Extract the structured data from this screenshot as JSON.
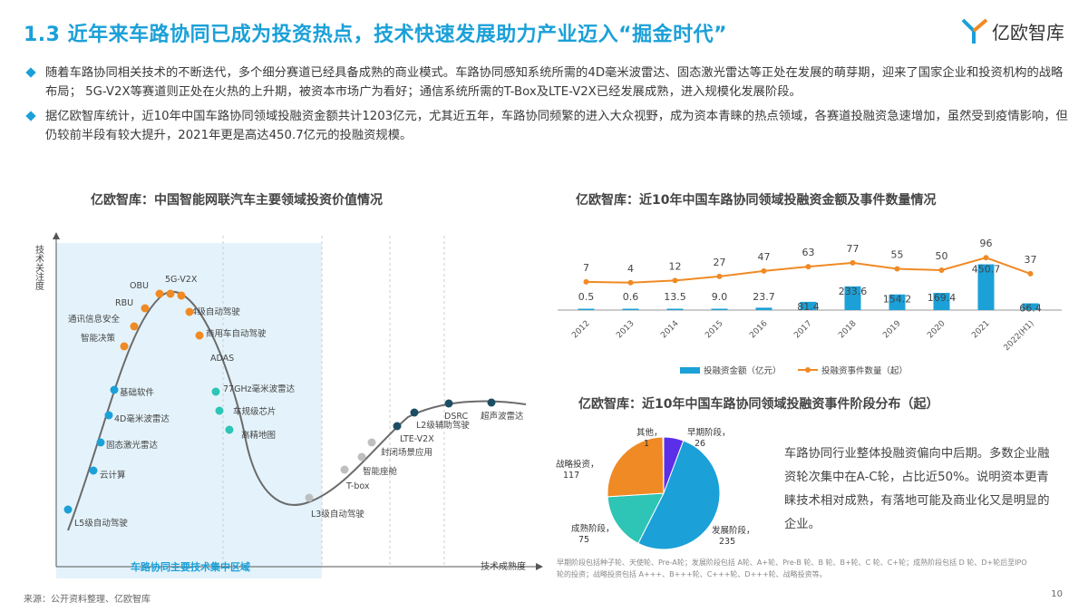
{
  "title": "1.3 近年来车路协同已成为投资热点，技术快速发展助力产业迈入“掘金时代”",
  "logo": {
    "text": "亿欧智库",
    "icon": "yiou-y-logo-icon"
  },
  "bullets": [
    "随着车路协同相关技术的不断迭代，多个细分赛道已经具备成熟的商业模式。车路协同感知系统所需的4D毫米波雷达、固态激光雷达等正处在发展的萌芽期，迎来了国家企业和投资机构的战略布局； 5G-V2X等赛道则正处在火热的上升期，被资本市场广为看好；通信系统所需的T-Box及LTE-V2X已经发展成熟，进入规模化发展阶段。",
    "据亿欧智库统计，近10年中国车路协同领域投融资金额共计1203亿元，尤其近五年，车路协同频繁的进入大众视野，成为资本青睐的热点领域，各赛道投融资急速增加，虽然受到疫情影响，但仍较前半段有较大提升，2021年更是高达450.7亿元的投融资规模。"
  ],
  "hype_chart": {
    "title": "亿欧智库：中国智能网联汽车主要领域投资价值情况",
    "y_axis_label": "技术关注度",
    "x_axis_label": "技术成熟度",
    "region_label": "车路协同主要技术集中区域",
    "points": [
      {
        "label": "L5级自动驾驶",
        "color": "#1ba0d8"
      },
      {
        "label": "云计算",
        "color": "#1ba0d8"
      },
      {
        "label": "固态激光雷达",
        "color": "#1ba0d8"
      },
      {
        "label": "4D毫米波雷达",
        "color": "#1ba0d8"
      },
      {
        "label": "基础软件",
        "color": "#1ba0d8"
      },
      {
        "label": "智能决策",
        "color": "#f08a24"
      },
      {
        "label": "通讯信息安全",
        "color": "#f08a24"
      },
      {
        "label": "RBU",
        "color": "#f08a24"
      },
      {
        "label": "OBU",
        "color": "#f08a24"
      },
      {
        "label": "5G-V2X",
        "color": "#f08a24"
      },
      {
        "label": "L4级自动驾驶",
        "color": "#f08a24"
      },
      {
        "label": "商用车自动驾驶",
        "color": "#f08a24"
      },
      {
        "label": "ADAS",
        "color": "#f08a24"
      },
      {
        "label": "77GHz毫米波雷达",
        "color": "#2ec4b6"
      },
      {
        "label": "车规级芯片",
        "color": "#2ec4b6"
      },
      {
        "label": "高精地图",
        "color": "#2ec4b6"
      },
      {
        "label": "L3级自动驾驶",
        "color": "#bfbfbf"
      },
      {
        "label": "T-box",
        "color": "#bfbfbf"
      },
      {
        "label": "智能座舱",
        "color": "#bfbfbf"
      },
      {
        "label": "封闭场景应用",
        "color": "#bfbfbf"
      },
      {
        "label": "LTE-V2X",
        "color": "#1c4e63"
      },
      {
        "label": "L2级辅助驾驶",
        "color": "#1c4e63"
      },
      {
        "label": "DSRC",
        "color": "#1c4e63"
      },
      {
        "label": "超声波雷达",
        "color": "#1c4e63"
      }
    ]
  },
  "chart_data": [
    {
      "type": "bar",
      "title": "亿欧智库：近10年中国车路协同领域投融资金额及事件数量情况",
      "categories": [
        "2012",
        "2013",
        "2014",
        "2015",
        "2016",
        "2017",
        "2018",
        "2019",
        "2020",
        "2021",
        "2022(H1)"
      ],
      "series": [
        {
          "name": "投融资金额（亿元）",
          "type": "bar",
          "color": "#1ba0d8",
          "values": [
            0.5,
            0.6,
            13.5,
            9.0,
            23.7,
            81.4,
            233.6,
            154.2,
            169.4,
            450.7,
            66.4
          ]
        },
        {
          "name": "投融资事件数量（起）",
          "type": "line",
          "color": "#f08a24",
          "values": [
            7,
            4,
            12,
            27,
            47,
            63,
            77,
            55,
            50,
            96,
            37
          ]
        }
      ],
      "value_labels": [
        "0.5",
        "0.6",
        "13.5",
        "9.0",
        "23.7",
        "81.4",
        "233.6",
        "154.2",
        "169.4",
        "450.7",
        "66.4"
      ],
      "legend": "bottom"
    },
    {
      "type": "pie",
      "title": "亿欧智库：近10年中国车路协同领域投融资事件阶段分布（起）",
      "slices": [
        {
          "label": "早期阶段",
          "value": 26,
          "color": "#5b2ee8"
        },
        {
          "label": "发展阶段",
          "value": 235,
          "color": "#1ba0d8"
        },
        {
          "label": "成熟阶段",
          "value": 75,
          "color": "#2ec4b6"
        },
        {
          "label": "战略投资",
          "value": 117,
          "color": "#f08a24"
        },
        {
          "label": "其他",
          "value": 1,
          "color": "#bfbfbf"
        }
      ]
    }
  ],
  "pie_description": "车路协同行业整体投融资偏向中后期。多数企业融资轮次集中在A-C轮，占比近50%。说明资本更青睐技术相对成熟，有落地可能及商业化又是明显的企业。",
  "pie_note": "早期阶段包括种子轮、天使轮、Pre-A轮；发展阶段包括 A轮、A+轮、Pre-B 轮、B 轮、B+轮、C 轮、C+轮；成熟阶段包括 D 轮、D+轮后至IPO轮的投资；战略投资包括 A+++、B+++轮、C+++轮、D+++轮、战略投资等。",
  "source": "来源：公开资料整理、亿欧智库",
  "page_number": "10"
}
